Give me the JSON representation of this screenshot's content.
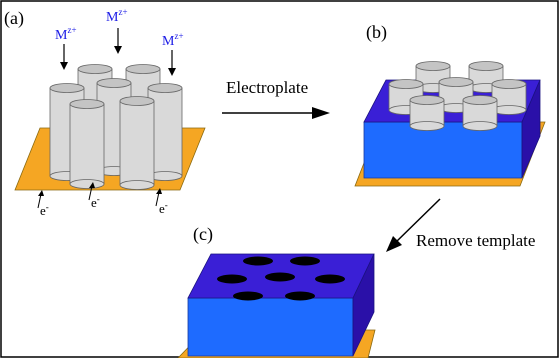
{
  "panels": {
    "a": {
      "label": "(a)"
    },
    "b": {
      "label": "(b)"
    },
    "c": {
      "label": "(c)"
    }
  },
  "ions": {
    "base": "M",
    "charge": "z+"
  },
  "electrons": {
    "base": "e",
    "charge": "-"
  },
  "steps": {
    "electroplate": "Electroplate",
    "remove_template": "Remove template"
  },
  "colors": {
    "substrate": "#F5A623",
    "template_front": "#1E6BFF",
    "template_top": "#3A1FD6",
    "template_side": "#2A10A8",
    "cylinder_body": "#D9D9D9",
    "cylinder_top": "#C4C4C4",
    "ion_text": "#1A1AE6",
    "hole": "#000000"
  }
}
